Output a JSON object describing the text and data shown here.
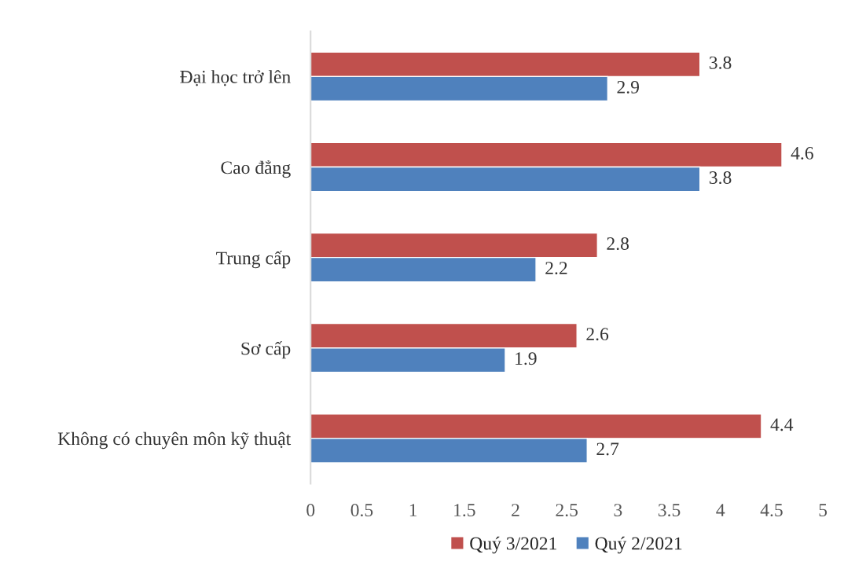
{
  "chart_data": {
    "type": "bar",
    "orientation": "horizontal",
    "categories": [
      "Đại học trở lên",
      "Cao đẳng",
      "Trung cấp",
      "Sơ cấp",
      "Không có chuyên môn kỹ thuật"
    ],
    "series": [
      {
        "name": "Quý 3/2021",
        "color": "#c0504d",
        "values": [
          3.8,
          4.6,
          2.8,
          2.6,
          4.4
        ]
      },
      {
        "name": "Quý 2/2021",
        "color": "#4f81bd",
        "values": [
          2.9,
          3.8,
          2.2,
          1.9,
          2.7
        ]
      }
    ],
    "xlim": [
      0,
      5
    ],
    "xticks": [
      0,
      0.5,
      1,
      1.5,
      2,
      2.5,
      3,
      3.5,
      4,
      4.5,
      5
    ],
    "data_labels": true,
    "grid": false,
    "legend": "bottom"
  }
}
